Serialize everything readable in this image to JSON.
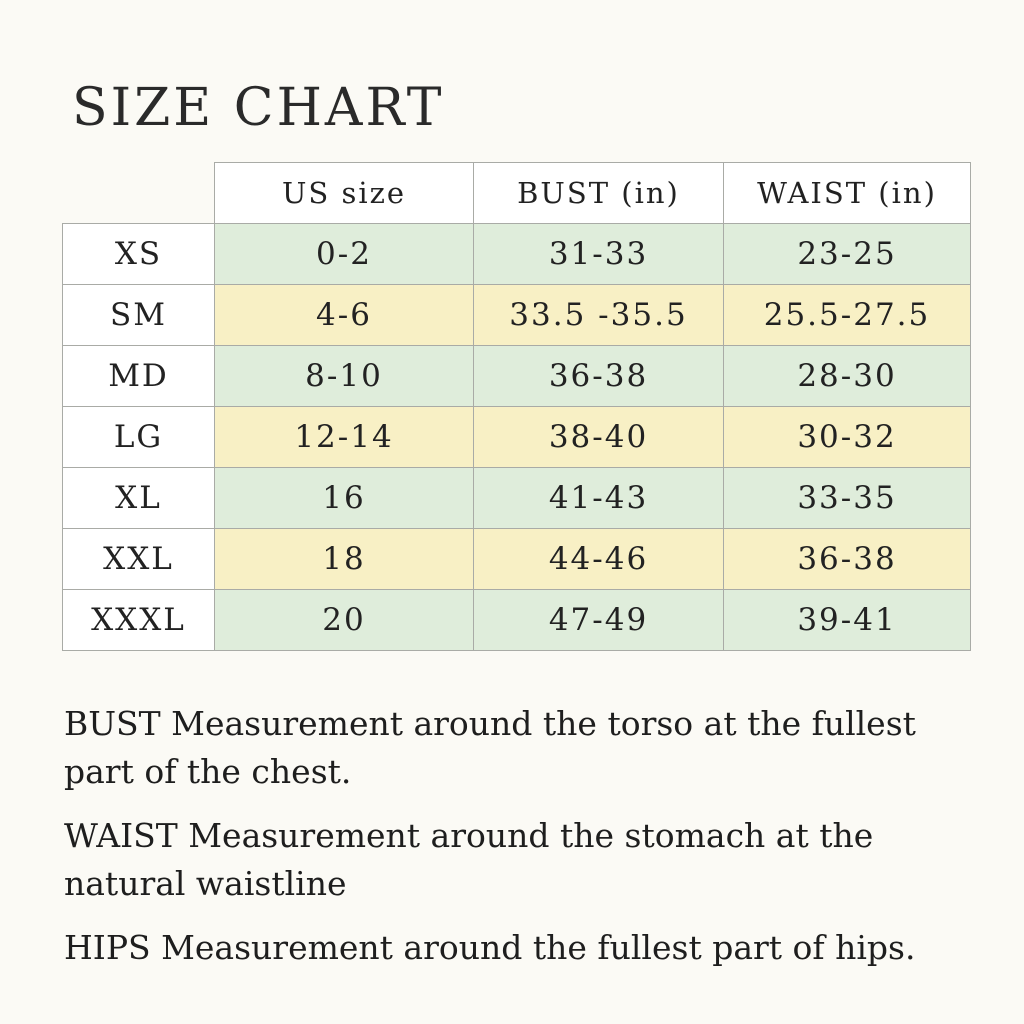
{
  "title": "SIZE CHART",
  "colors": {
    "green_row": "#dfeddb",
    "yellow_row": "#f8f0c5",
    "background": "#fbfaf5"
  },
  "table": {
    "headers": [
      "",
      "US size",
      "BUST (in)",
      "WAIST (in)"
    ],
    "rows": [
      {
        "size": "XS",
        "us": "0-2",
        "bust": "31-33",
        "waist": "23-25",
        "color": "green"
      },
      {
        "size": "SM",
        "us": "4-6",
        "bust": "33.5 -35.5",
        "waist": "25.5-27.5",
        "color": "yellow"
      },
      {
        "size": "MD",
        "us": "8-10",
        "bust": "36-38",
        "waist": "28-30",
        "color": "green"
      },
      {
        "size": "LG",
        "us": "12-14",
        "bust": "38-40",
        "waist": "30-32",
        "color": "yellow"
      },
      {
        "size": "XL",
        "us": "16",
        "bust": "41-43",
        "waist": "33-35",
        "color": "green"
      },
      {
        "size": "XXL",
        "us": "18",
        "bust": "44-46",
        "waist": "36-38",
        "color": "yellow"
      },
      {
        "size": "XXXL",
        "us": "20",
        "bust": "47-49",
        "waist": "39-41",
        "color": "green"
      }
    ]
  },
  "notes": [
    "BUST Measurement around the torso at the fullest part of the chest.",
    "WAIST Measurement around the stomach at the natural waistline",
    "HIPS Measurement around the fullest part of hips."
  ]
}
